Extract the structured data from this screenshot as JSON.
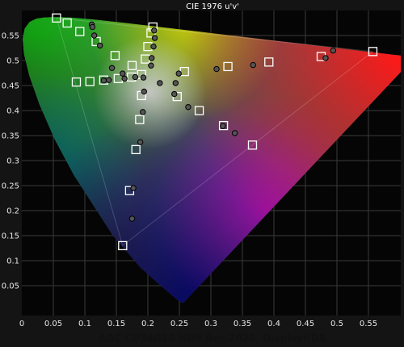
{
  "chart_data": {
    "type": "scatter",
    "title": "CIE 1976 u'v'",
    "caption": "AOC CU34G3S HDR Rec.2020, DisplayHDR",
    "xlim": [
      0,
      0.6
    ],
    "ylim": [
      0,
      0.6
    ],
    "x_ticks": [
      0,
      0.05,
      0.1,
      0.15,
      0.2,
      0.25,
      0.3,
      0.35,
      0.4,
      0.45,
      0.5,
      0.55
    ],
    "x_tick_labels": [
      "0",
      "0.05",
      "0.1",
      "0.15",
      "0.2",
      "0.25",
      "0.3",
      "0.35",
      "0.4",
      "0.45",
      "0.5",
      "0.55"
    ],
    "y_ticks": [
      0.05,
      0.1,
      0.15,
      0.2,
      0.25,
      0.3,
      0.35,
      0.4,
      0.45,
      0.5,
      0.55
    ],
    "y_tick_labels": [
      "0.05",
      "0.1",
      "0.15",
      "0.2",
      "0.25",
      "0.3",
      "0.35",
      "0.4",
      "0.45",
      "0.5",
      "0.55"
    ],
    "grid": true,
    "series": [
      {
        "marker": "square",
        "points": [
          [
            0.055,
            0.585
          ],
          [
            0.072,
            0.575
          ],
          [
            0.092,
            0.558
          ],
          [
            0.118,
            0.538
          ],
          [
            0.148,
            0.51
          ],
          [
            0.175,
            0.49
          ],
          [
            0.208,
            0.567
          ],
          [
            0.205,
            0.555
          ],
          [
            0.2,
            0.528
          ],
          [
            0.196,
            0.503
          ],
          [
            0.19,
            0.472
          ],
          [
            0.0865,
            0.457
          ],
          [
            0.108,
            0.458
          ],
          [
            0.13,
            0.461
          ],
          [
            0.153,
            0.464
          ],
          [
            0.174,
            0.467
          ],
          [
            0.258,
            0.478
          ],
          [
            0.327,
            0.488
          ],
          [
            0.392,
            0.497
          ],
          [
            0.475,
            0.508
          ],
          [
            0.557,
            0.518
          ],
          [
            0.19,
            0.43
          ],
          [
            0.2465,
            0.428
          ],
          [
            0.2815,
            0.4
          ],
          [
            0.32,
            0.37
          ],
          [
            0.366,
            0.331
          ],
          [
            0.187,
            0.382
          ],
          [
            0.181,
            0.322
          ],
          [
            0.171,
            0.24
          ],
          [
            0.16,
            0.13
          ]
        ]
      },
      {
        "marker": "circle",
        "points": [
          [
            0.111,
            0.572
          ],
          [
            0.112,
            0.567
          ],
          [
            0.115,
            0.55
          ],
          [
            0.124,
            0.53
          ],
          [
            0.143,
            0.485
          ],
          [
            0.16,
            0.474
          ],
          [
            0.193,
            0.466
          ],
          [
            0.21,
            0.56
          ],
          [
            0.211,
            0.545
          ],
          [
            0.209,
            0.528
          ],
          [
            0.206,
            0.505
          ],
          [
            0.205,
            0.49
          ],
          [
            0.13,
            0.46
          ],
          [
            0.138,
            0.461
          ],
          [
            0.163,
            0.464
          ],
          [
            0.18,
            0.467
          ],
          [
            0.219,
            0.455
          ],
          [
            0.249,
            0.474
          ],
          [
            0.309,
            0.483
          ],
          [
            0.367,
            0.491
          ],
          [
            0.482,
            0.505
          ],
          [
            0.494,
            0.52
          ],
          [
            0.242,
            0.433
          ],
          [
            0.194,
            0.438
          ],
          [
            0.264,
            0.407
          ],
          [
            0.192,
            0.397
          ],
          [
            0.319,
            0.369
          ],
          [
            0.338,
            0.355
          ],
          [
            0.188,
            0.337
          ],
          [
            0.177,
            0.245
          ],
          [
            0.175,
            0.184
          ],
          [
            0.244,
            0.455
          ]
        ]
      }
    ]
  }
}
